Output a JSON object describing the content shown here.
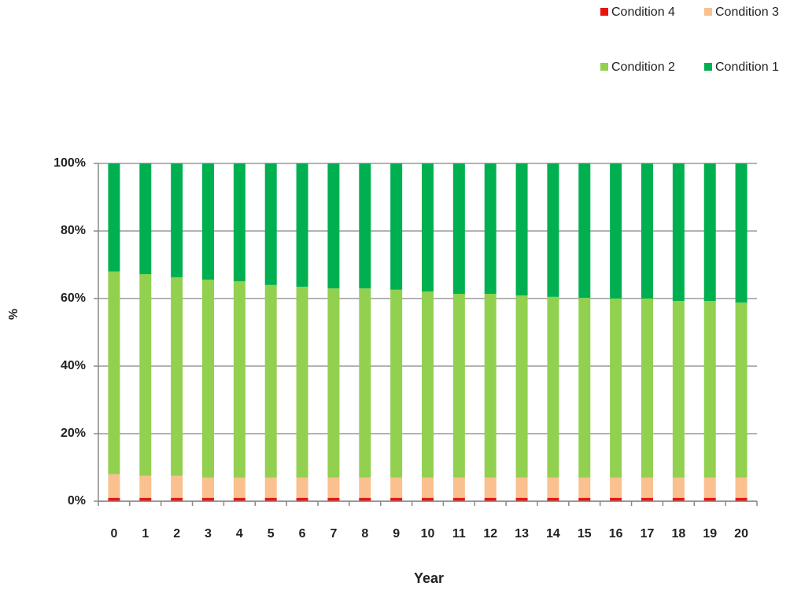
{
  "chart_data": {
    "type": "stacked_bar",
    "x_label": "Year",
    "y_label": "%",
    "categories": [
      "0",
      "1",
      "2",
      "3",
      "4",
      "5",
      "6",
      "7",
      "8",
      "9",
      "10",
      "11",
      "12",
      "13",
      "14",
      "15",
      "16",
      "17",
      "18",
      "19",
      "20"
    ],
    "series": [
      {
        "name": "Condition 4",
        "color": "#e8130f",
        "values": [
          1,
          1,
          1,
          1,
          1,
          1,
          1,
          1,
          1,
          1,
          1,
          1,
          1,
          1,
          1,
          1,
          1,
          1,
          1,
          1,
          1
        ]
      },
      {
        "name": "Condition 3",
        "color": "#fac090",
        "values": [
          7,
          6.5,
          6.5,
          6,
          6,
          6,
          6,
          6,
          6,
          6,
          6,
          6,
          6,
          6,
          6,
          6,
          6,
          6,
          6,
          6,
          6
        ]
      },
      {
        "name": "Condition 2",
        "color": "#92d050",
        "values": [
          60,
          59.7,
          58.8,
          58.6,
          58.1,
          57,
          56.5,
          56,
          56,
          55.6,
          55.1,
          54.4,
          54.4,
          53.9,
          53.5,
          53.2,
          53,
          53,
          52.3,
          52.3,
          51.8
        ]
      },
      {
        "name": "Condition 1",
        "color": "#00b050",
        "values": [
          32,
          32.8,
          33.7,
          34.4,
          34.9,
          36,
          36.5,
          37,
          37,
          37.4,
          37.9,
          38.6,
          38.6,
          39.1,
          39.5,
          39.8,
          40,
          40,
          40.7,
          40.7,
          41.2
        ]
      }
    ],
    "ylim": [
      0,
      100
    ],
    "yticks": [
      {
        "value": 0,
        "label": "0%"
      },
      {
        "value": 20,
        "label": "20%"
      },
      {
        "value": 40,
        "label": "40%"
      },
      {
        "value": 60,
        "label": "60%"
      },
      {
        "value": 80,
        "label": "80%"
      },
      {
        "value": 100,
        "label": "100%"
      }
    ],
    "grid": true,
    "legend": "top-right"
  }
}
